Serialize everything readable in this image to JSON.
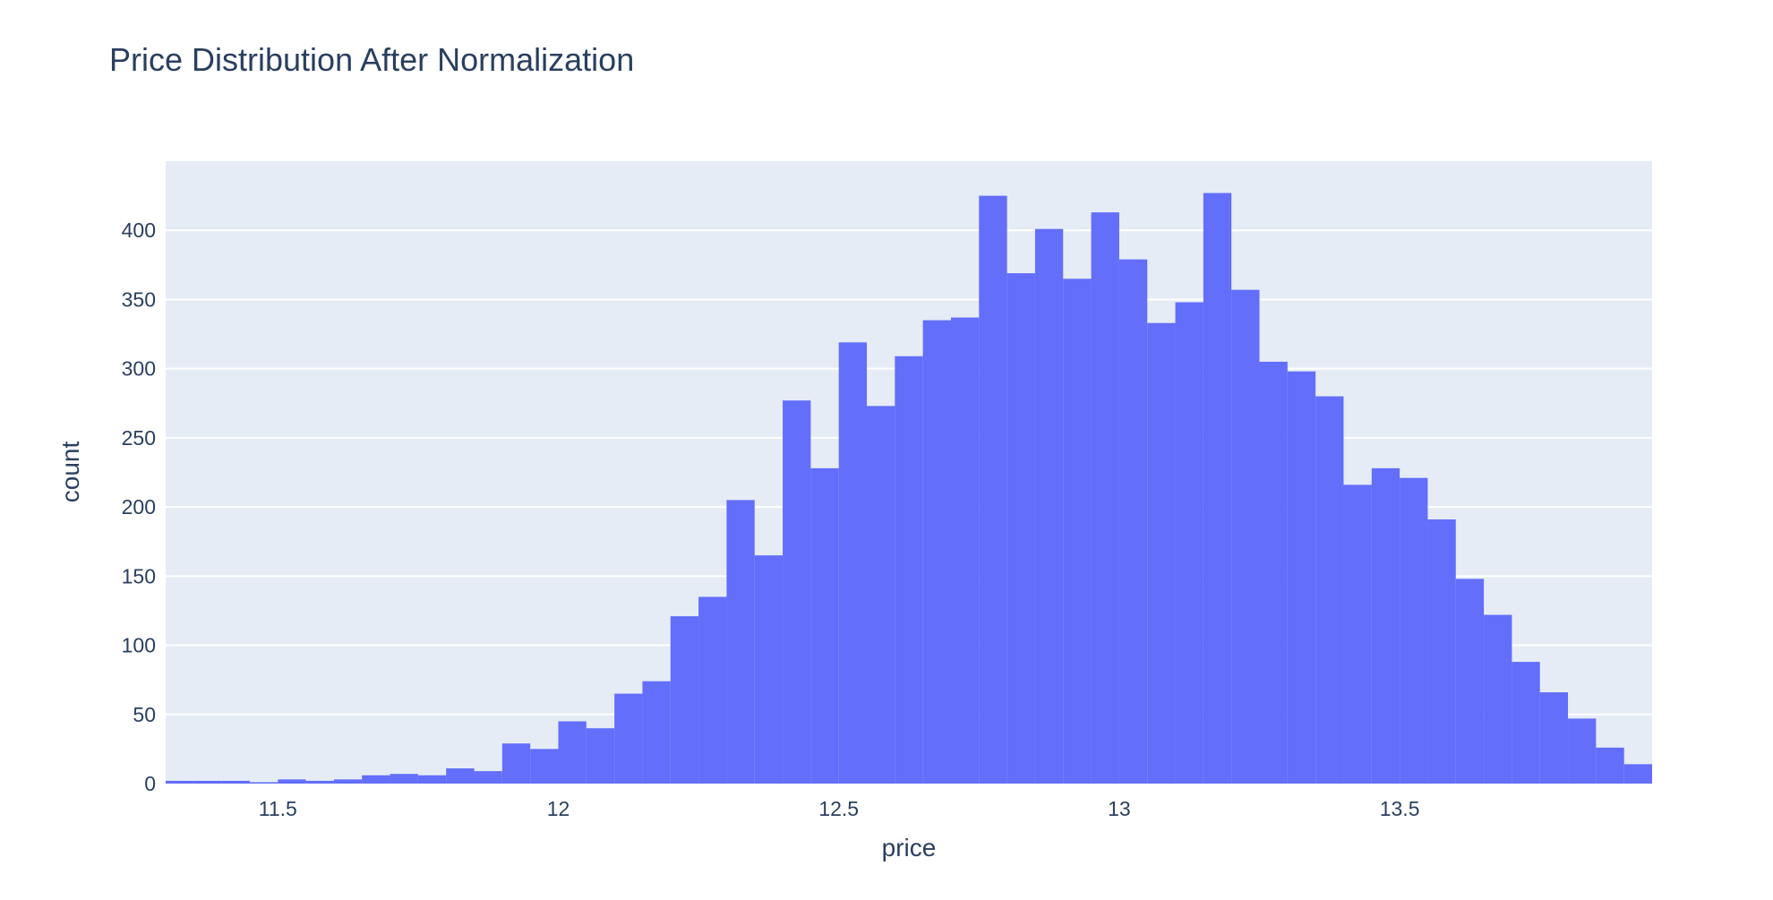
{
  "chart_data": {
    "type": "bar",
    "title": "Price Distribution After Normalization",
    "xlabel": "price",
    "ylabel": "count",
    "x_ticks": [
      "11.5",
      "12",
      "12.5",
      "13",
      "13.5"
    ],
    "x_tick_values": [
      11.5,
      12,
      12.5,
      13,
      13.5
    ],
    "y_ticks": [
      "0",
      "50",
      "100",
      "150",
      "200",
      "250",
      "300",
      "350",
      "400"
    ],
    "y_tick_values": [
      0,
      50,
      100,
      150,
      200,
      250,
      300,
      350,
      400
    ],
    "xlim": [
      11.3,
      13.95
    ],
    "ylim": [
      0,
      450
    ],
    "grid": true,
    "bin_width": 0.05,
    "bin_start": 11.3,
    "values": [
      2,
      2,
      2,
      1,
      3,
      2,
      3,
      6,
      7,
      6,
      11,
      9,
      29,
      25,
      45,
      40,
      65,
      74,
      121,
      135,
      205,
      165,
      277,
      228,
      319,
      273,
      309,
      335,
      337,
      425,
      369,
      401,
      365,
      413,
      379,
      333,
      348,
      427,
      357,
      305,
      298,
      280,
      216,
      228,
      221,
      191,
      148,
      122,
      88,
      66,
      47,
      26,
      14
    ],
    "colors": {
      "bar": "#636efa",
      "plot_bg": "#e5ecf6",
      "grid": "#ffffff",
      "text": "#2a3f5f"
    }
  }
}
